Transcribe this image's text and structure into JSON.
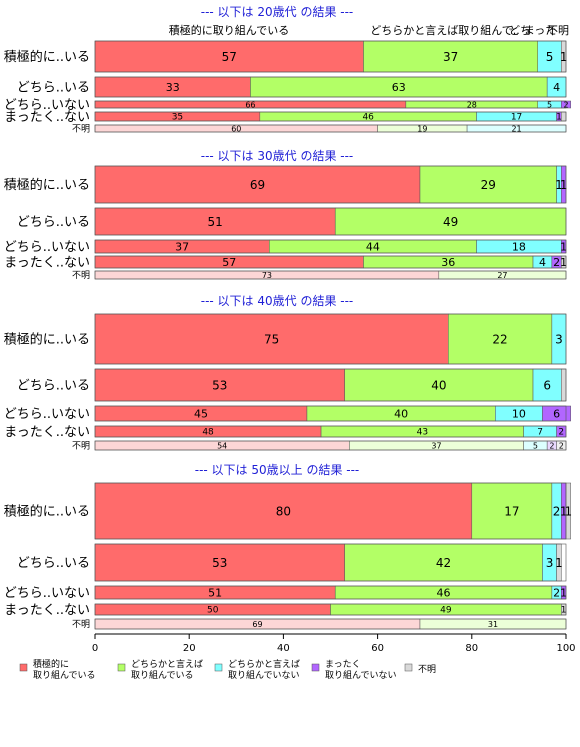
{
  "chart_data": {
    "type": "bar",
    "stacked": true,
    "orientation": "horizontal",
    "xlim": [
      0,
      100
    ],
    "x_ticks": [
      "0",
      "20",
      "40",
      "60",
      "80",
      "100"
    ],
    "column_headers": [
      "積極的に取り組んでいる",
      "どちらかと言えば取り組んで..",
      "どち",
      "まった",
      "不明"
    ],
    "categories": [
      "積極的に..いる",
      "どちら..いる",
      "どちら..いない",
      "まったく..ない",
      "不明"
    ],
    "legend": [
      {
        "label": "積極的に\n取り組んでいる",
        "color": "#ff6b6b"
      },
      {
        "label": "どちらかと言えば\n取り組んでいる",
        "color": "#b3ff66"
      },
      {
        "label": "どちらかと言えば\n取り組んでいない",
        "color": "#80ffff"
      },
      {
        "label": "まったく\n取り組んでいない",
        "color": "#b266ff"
      },
      {
        "label": "不明",
        "color": "#d9d9d9"
      }
    ],
    "panels": [
      {
        "title": "--- 以下は 20歳代 の結果 ---",
        "rows": [
          {
            "values": [
              57,
              37,
              5,
              0,
              1
            ],
            "labels": [
              "57",
              "37",
              "5",
              "",
              "1"
            ]
          },
          {
            "values": [
              33,
              63,
              4,
              0,
              0
            ],
            "labels": [
              "33",
              "63",
              "4",
              "",
              ""
            ]
          },
          {
            "values": [
              66,
              28,
              5,
              2,
              0
            ],
            "labels": [
              "66",
              "28",
              "5",
              "2",
              ""
            ]
          },
          {
            "values": [
              35,
              46,
              17,
              1,
              1
            ],
            "labels": [
              "35",
              "46",
              "17",
              "1",
              ""
            ]
          },
          {
            "values": [
              60,
              19,
              21,
              0,
              0
            ],
            "labels": [
              "60",
              "19",
              "21",
              "",
              ""
            ]
          }
        ]
      },
      {
        "title": "--- 以下は 30歳代 の結果 ---",
        "rows": [
          {
            "values": [
              69,
              29,
              1,
              1,
              0
            ],
            "labels": [
              "69",
              "29",
              "1",
              "1",
              ""
            ]
          },
          {
            "values": [
              51,
              49,
              0,
              0,
              0
            ],
            "labels": [
              "51",
              "49",
              "",
              "",
              ""
            ]
          },
          {
            "values": [
              37,
              44,
              18,
              1,
              0
            ],
            "labels": [
              "37",
              "44",
              "18",
              "1",
              ""
            ]
          },
          {
            "values": [
              57,
              36,
              4,
              2,
              1
            ],
            "labels": [
              "57",
              "36",
              "4",
              "2",
              "1"
            ]
          },
          {
            "values": [
              73,
              27,
              0,
              0,
              0
            ],
            "labels": [
              "73",
              "27",
              "",
              "",
              ""
            ]
          }
        ]
      },
      {
        "title": "--- 以下は 40歳代 の結果 ---",
        "rows": [
          {
            "values": [
              75,
              22,
              3,
              0,
              0
            ],
            "labels": [
              "75",
              "22",
              "3",
              "",
              ""
            ]
          },
          {
            "values": [
              53,
              40,
              6,
              0,
              1
            ],
            "labels": [
              "53",
              "40",
              "6",
              "",
              ""
            ]
          },
          {
            "values": [
              45,
              40,
              10,
              6,
              0
            ],
            "labels": [
              "45",
              "40",
              "10",
              "6",
              ""
            ]
          },
          {
            "values": [
              48,
              43,
              7,
              2,
              0
            ],
            "labels": [
              "48",
              "43",
              "7",
              "2",
              ""
            ]
          },
          {
            "values": [
              54,
              37,
              5,
              2,
              2
            ],
            "labels": [
              "54",
              "37",
              "5",
              "2",
              "2"
            ]
          }
        ]
      },
      {
        "title": "--- 以下は 50歳以上 の結果 ---",
        "rows": [
          {
            "values": [
              80,
              17,
              2,
              1,
              1
            ],
            "labels": [
              "80",
              "17",
              "2",
              "1",
              "1"
            ]
          },
          {
            "values": [
              53,
              42,
              3,
              0,
              1
            ],
            "labels": [
              "53",
              "42",
              "3",
              "",
              "1"
            ]
          },
          {
            "values": [
              51,
              46,
              2,
              1,
              0
            ],
            "labels": [
              "51",
              "46",
              "2",
              "1",
              ""
            ]
          },
          {
            "values": [
              50,
              49,
              0,
              0,
              1
            ],
            "labels": [
              "50",
              "49",
              "",
              "",
              "1"
            ]
          },
          {
            "values": [
              69,
              31,
              0,
              0,
              0
            ],
            "labels": [
              "69",
              "31",
              "",
              "",
              ""
            ]
          }
        ]
      }
    ]
  }
}
